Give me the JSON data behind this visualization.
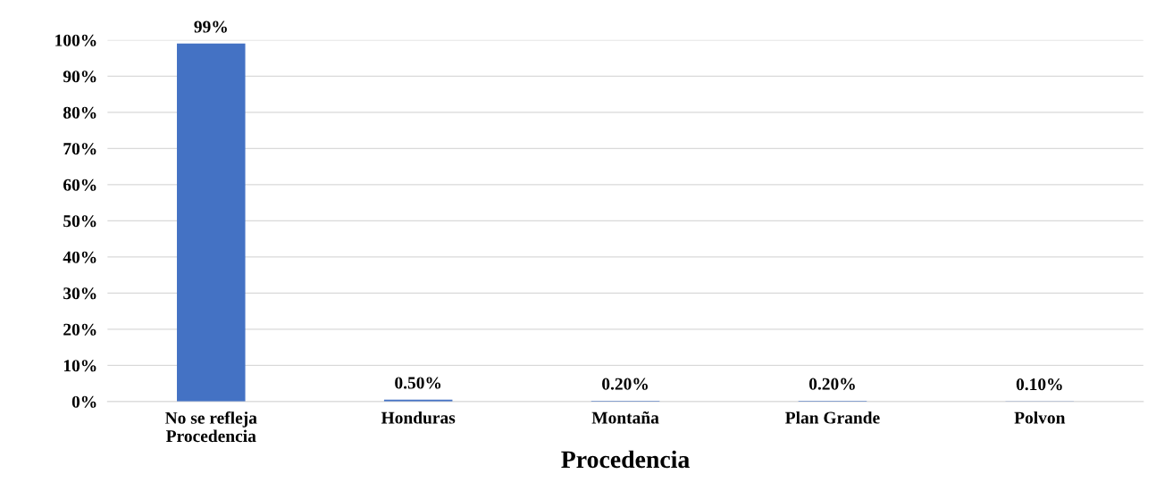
{
  "chart_data": {
    "type": "bar",
    "xlabel": "Procedencia",
    "categories": [
      "No se refleja\nProcedencia",
      "Honduras",
      "Montaña",
      "Plan Grande",
      "Polvon"
    ],
    "values": [
      99,
      0.5,
      0.2,
      0.2,
      0.1
    ],
    "value_labels": [
      "99%",
      "0.50%",
      "0.20%",
      "0.20%",
      "0.10%"
    ],
    "color": "#4472c4",
    "ylim": [
      0,
      100
    ],
    "yticks": [
      {
        "value": 0,
        "label": "0%"
      },
      {
        "value": 10,
        "label": "10%"
      },
      {
        "value": 20,
        "label": "20%"
      },
      {
        "value": 30,
        "label": "30%"
      },
      {
        "value": 40,
        "label": "40%"
      },
      {
        "value": 50,
        "label": "50%"
      },
      {
        "value": 60,
        "label": "60%"
      },
      {
        "value": 70,
        "label": "70%"
      },
      {
        "value": 80,
        "label": "80%"
      },
      {
        "value": 90,
        "label": "90%"
      },
      {
        "value": 100,
        "label": "100%"
      }
    ],
    "grid": "y"
  }
}
